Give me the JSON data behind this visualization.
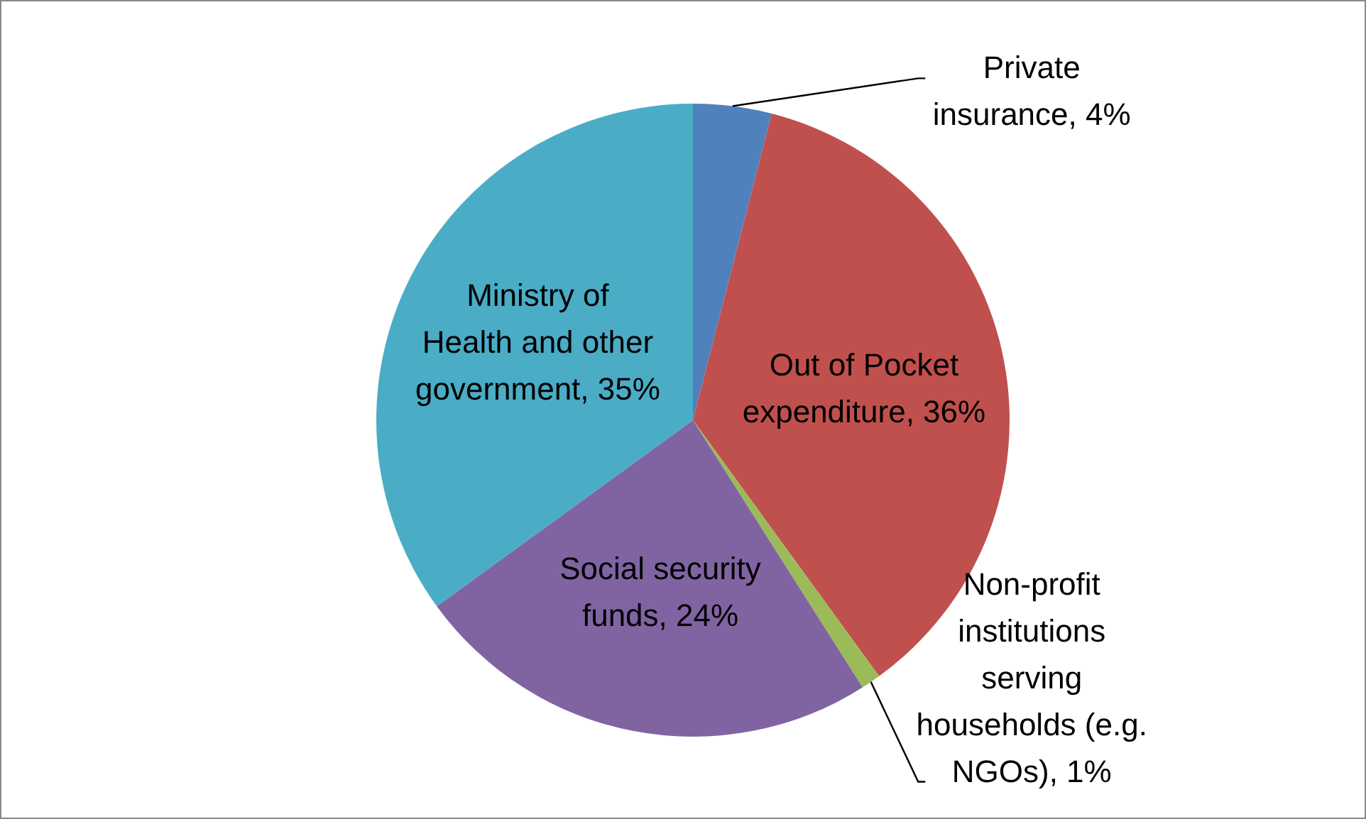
{
  "chart_data": {
    "type": "pie",
    "categories": [
      "Private insurance",
      "Out of Pocket expenditure",
      "Non-profit institutions serving households (e.g. NGOs)",
      "Social security funds",
      "Ministry of Health and other government"
    ],
    "values": [
      4,
      36,
      1,
      24,
      35
    ],
    "value_labels": [
      "4%",
      "36%",
      "1%",
      "24%",
      "35%"
    ],
    "colors": [
      "#4f81bd",
      "#c0504d",
      "#9bbb59",
      "#8064a2",
      "#4bacc6"
    ]
  }
}
